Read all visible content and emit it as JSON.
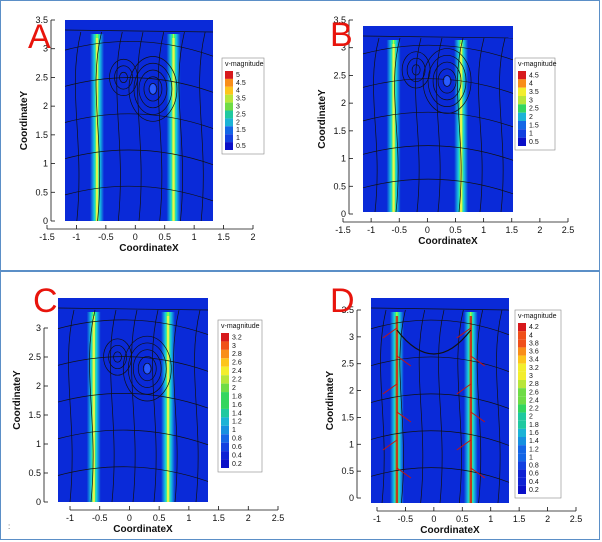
{
  "panels": [
    {
      "label": "A",
      "xlabel": "CoordinateX",
      "ylabel": "CoordinateY",
      "xticks": [
        "-1.5",
        "-1",
        "-0.5",
        "0",
        "0.5",
        "1",
        "1.5",
        "2"
      ],
      "yticks": [
        "0",
        "0.5",
        "1",
        "1.5",
        "2",
        "2.5",
        "3",
        "3.5"
      ],
      "legend_title": "v-magnitude",
      "legend_values": [
        "5",
        "4.5",
        "4",
        "3.5",
        "3",
        "2.5",
        "2",
        "1.5",
        "1",
        "0.5"
      ]
    },
    {
      "label": "B",
      "xlabel": "CoordinateX",
      "ylabel": "CoordinateY",
      "xticks": [
        "-1.5",
        "-1",
        "-0.5",
        "0",
        "0.5",
        "1",
        "1.5",
        "2",
        "2.5"
      ],
      "yticks": [
        "0",
        "0.5",
        "1",
        "1.5",
        "2",
        "2.5",
        "3",
        "3.5"
      ],
      "legend_title": "v-magnitude",
      "legend_values": [
        "4.5",
        "4",
        "3.5",
        "3",
        "2.5",
        "2",
        "1.5",
        "1",
        "0.5"
      ]
    },
    {
      "label": "C",
      "xlabel": "CoordinateX",
      "ylabel": "CoordinateY",
      "xticks": [
        "-1",
        "-0.5",
        "0",
        "0.5",
        "1",
        "1.5",
        "2",
        "2.5"
      ],
      "yticks": [
        "0",
        "0.5",
        "1",
        "1.5",
        "2",
        "2.5",
        "3"
      ],
      "legend_title": "v-magnitude",
      "legend_values": [
        "3.2",
        "3",
        "2.8",
        "2.6",
        "2.4",
        "2.2",
        "2",
        "1.8",
        "1.6",
        "1.4",
        "1.2",
        "1",
        "0.8",
        "0.6",
        "0.4",
        "0.2"
      ]
    },
    {
      "label": "D",
      "xlabel": "CoordinateX",
      "ylabel": "CoordinateY",
      "xticks": [
        "-1",
        "-0.5",
        "0",
        "0.5",
        "1",
        "1.5",
        "2",
        "2.5"
      ],
      "yticks": [
        "0",
        "0.5",
        "1",
        "1.5",
        "2",
        "2.5",
        "3",
        "3.5"
      ],
      "legend_title": "v-magnitude",
      "legend_values": [
        "4.2",
        "4",
        "3.8",
        "3.6",
        "3.4",
        "3.2",
        "3",
        "2.8",
        "2.6",
        "2.4",
        "2.2",
        "2",
        "1.8",
        "1.6",
        "1.4",
        "1.2",
        "1",
        "0.8",
        "0.6",
        "0.4",
        "0.2"
      ]
    }
  ],
  "colors": {
    "field_background": "#0a2ad8",
    "frame_border": "#5b8fc7",
    "panel_label": "#e8140c"
  },
  "footnote": ":"
}
